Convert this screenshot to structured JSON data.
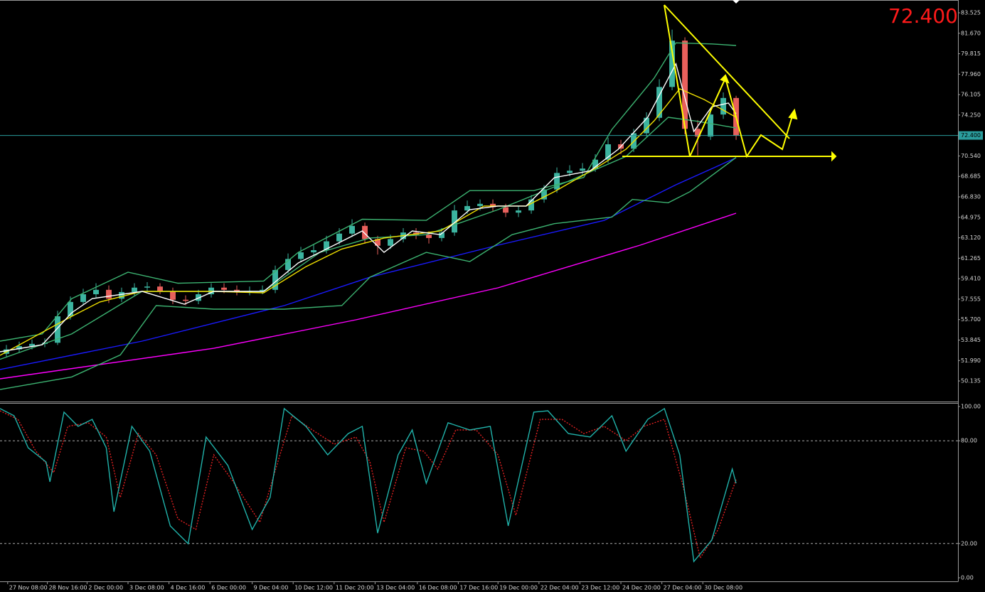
{
  "chart_data": [
    {
      "type": "candlestick",
      "up_color": "#3cb4a0",
      "down_color": "#e8605c",
      "xlim": [
        -0.5,
        74.33
      ],
      "ylim": [
        48.27,
        84.685
      ],
      "yticks": [
        83.525,
        {
          "value": 81.67,
          "label": "81.670"
        },
        79.815,
        {
          "value": 77.96,
          "label": "77.960"
        },
        76.105,
        {
          "value": 74.25,
          "label": "74.250"
        },
        {
          "value": 70.54,
          "label": "70.540"
        },
        68.685,
        {
          "value": 66.83,
          "label": "66.830"
        },
        64.975,
        {
          "value": 63.12,
          "label": "63.120"
        },
        61.265,
        {
          "value": 59.41,
          "label": "59.410"
        },
        57.555,
        {
          "value": 55.7,
          "label": "55.700"
        },
        53.845,
        {
          "value": 51.99,
          "label": "51.990"
        },
        50.135
      ],
      "last_price": {
        "value": 72.4,
        "label": "72.400"
      },
      "open": [
        52.6,
        53.0,
        53.3,
        53.5,
        53.6,
        56.0,
        57.3,
        58.0,
        58.4,
        57.6,
        58.2,
        58.6,
        58.7,
        58.3,
        57.5,
        57.4,
        58.0,
        58.6,
        58.4,
        58.2,
        58.3,
        58.4,
        60.2,
        61.2,
        61.8,
        62.0,
        62.8,
        63.5,
        64.2,
        63.0,
        62.4,
        63.0,
        63.6,
        63.4,
        63.1,
        63.6,
        65.6,
        66.0,
        66.2,
        65.9,
        65.4,
        65.6,
        66.6,
        67.5,
        69.0,
        69.2,
        69.4,
        70.2,
        71.6,
        71.2,
        72.6,
        74.0,
        76.8,
        81.0,
        73.0,
        72.3,
        74.3,
        75.8
      ],
      "high": [
        53.4,
        53.7,
        53.9,
        54.0,
        56.5,
        57.8,
        58.5,
        59.0,
        58.8,
        58.6,
        59.0,
        59.1,
        59.0,
        58.6,
        57.9,
        58.4,
        59.0,
        59.0,
        58.8,
        58.7,
        58.8,
        60.6,
        61.7,
        62.3,
        62.5,
        63.3,
        64.0,
        64.8,
        64.5,
        63.3,
        63.4,
        64.0,
        64.0,
        63.7,
        64.0,
        66.1,
        66.5,
        66.6,
        66.6,
        66.2,
        66.0,
        67.0,
        67.9,
        69.5,
        69.7,
        69.9,
        70.7,
        72.2,
        72.0,
        73.0,
        74.5,
        77.5,
        82.0,
        81.3,
        73.8,
        74.8,
        76.3,
        76.0
      ],
      "low": [
        52.3,
        52.7,
        53.0,
        53.2,
        53.4,
        55.7,
        57.0,
        57.7,
        57.2,
        57.3,
        57.9,
        58.2,
        58.0,
        57.1,
        57.0,
        57.1,
        57.7,
        58.1,
        57.9,
        57.9,
        58.0,
        58.1,
        59.9,
        60.9,
        61.5,
        61.7,
        62.5,
        63.2,
        62.6,
        61.6,
        62.1,
        62.7,
        63.0,
        62.6,
        62.8,
        63.3,
        65.3,
        65.6,
        65.5,
        65.0,
        65.0,
        65.3,
        66.3,
        67.2,
        68.7,
        68.8,
        69.1,
        69.9,
        70.7,
        70.9,
        72.3,
        73.7,
        76.5,
        72.5,
        70.6,
        72.0,
        73.9,
        72.0
      ],
      "close": [
        53.0,
        53.3,
        53.5,
        53.6,
        56.0,
        57.3,
        58.0,
        58.4,
        57.6,
        58.2,
        58.6,
        58.7,
        58.3,
        57.5,
        57.4,
        58.0,
        58.6,
        58.4,
        58.2,
        58.3,
        58.4,
        60.2,
        61.2,
        61.8,
        62.0,
        62.8,
        63.5,
        64.2,
        63.0,
        62.4,
        63.0,
        63.6,
        63.4,
        63.1,
        63.6,
        65.6,
        66.0,
        66.2,
        65.9,
        65.4,
        65.6,
        66.6,
        67.5,
        69.0,
        69.2,
        69.4,
        70.2,
        71.6,
        71.2,
        72.6,
        74.0,
        76.8,
        81.0,
        73.0,
        72.3,
        74.3,
        75.8,
        72.4
      ],
      "series": [
        {
          "color": "#ff00ff",
          "x": [
            -0.5,
            16.2,
            27.3,
            38.4,
            49.5,
            57.0
          ],
          "values": [
            50.33,
            53.1,
            55.68,
            58.58,
            62.45,
            65.35
          ]
        },
        {
          "color": "#1a1aff",
          "x": [
            -0.5,
            10.6,
            21.7,
            28.4,
            38.4,
            46.7,
            52.3,
            57.0
          ],
          "values": [
            51.17,
            53.75,
            56.97,
            59.55,
            62.45,
            64.7,
            67.93,
            70.38
          ]
        },
        {
          "color": "#3cb371",
          "x": [
            -0.5,
            2.8,
            5.1,
            9.5,
            13.4,
            20.1,
            22.8,
            27.8,
            32.8,
            36.2,
            41.2,
            45.1,
            47.3,
            50.6,
            52.3,
            55.1,
            57.0
          ],
          "values": [
            53.75,
            54.4,
            57.6,
            60.0,
            59.0,
            59.2,
            61.8,
            64.8,
            64.7,
            67.4,
            67.4,
            68.6,
            72.95,
            77.6,
            80.8,
            80.7,
            80.56
          ]
        },
        {
          "color": "#3cb371",
          "x": [
            -0.5,
            5.1,
            8.9,
            11.7,
            16.2,
            21.7,
            26.2,
            28.4,
            32.8,
            36.2,
            39.5,
            42.8,
            47.3,
            48.9,
            51.7,
            53.4,
            57.0
          ],
          "values": [
            49.36,
            50.5,
            52.5,
            56.97,
            56.65,
            56.65,
            56.97,
            59.55,
            61.8,
            60.97,
            63.4,
            64.4,
            65.0,
            66.6,
            66.3,
            67.3,
            70.4
          ]
        },
        {
          "color": "#3cb371",
          "x": [
            -0.5,
            5.1,
            10.6,
            20.1,
            24.5,
            28.4,
            32.8,
            38.4,
            43.9,
            48.4,
            51.7,
            53.9,
            57.0
          ],
          "values": [
            52.1,
            54.4,
            58.26,
            58.26,
            61.8,
            63.1,
            63.4,
            65.67,
            68.25,
            70.5,
            74.05,
            73.7,
            73.08
          ]
        },
        {
          "color": "#f0e000",
          "x": [
            -0.5,
            5.1,
            7.3,
            10.6,
            16.2,
            20.1,
            23.4,
            26.2,
            29.5,
            33.9,
            37.3,
            40.6,
            42.8,
            46.2,
            48.4,
            50.6,
            52.6,
            54.5,
            57.0
          ],
          "values": [
            52.46,
            56.0,
            57.3,
            58.26,
            58.26,
            58.13,
            60.5,
            62.1,
            63.1,
            63.74,
            66.0,
            66.0,
            67.3,
            69.55,
            71.15,
            73.73,
            76.63,
            75.66,
            74.05
          ]
        },
        {
          "color": "#ffffff",
          "x": [
            -0.5,
            2.8,
            5.1,
            6.7,
            10.6,
            13.9,
            16.2,
            20.1,
            22.8,
            25.6,
            27.8,
            29.5,
            31.7,
            33.9,
            36.2,
            38.4,
            40.6,
            42.8,
            45.6,
            47.8,
            50.1,
            52.3,
            53.7,
            55.1,
            56.4,
            57.0
          ],
          "values": [
            52.78,
            53.42,
            56.32,
            57.6,
            58.26,
            57.1,
            58.26,
            58.26,
            60.84,
            62.45,
            63.74,
            61.8,
            63.74,
            63.4,
            65.67,
            66.0,
            66.0,
            68.57,
            69.2,
            71.15,
            74.05,
            78.9,
            72.76,
            75.0,
            75.34,
            74.37
          ]
        }
      ]
    },
    {
      "type": "line",
      "xlim": [
        -0.5,
        74.33
      ],
      "ylim": [
        -2.07,
        102.07
      ],
      "yticks": [
        {
          "value": 100,
          "label": "100.00"
        },
        {
          "value": 80,
          "label": "80.00"
        },
        {
          "value": 20,
          "label": "20.00"
        },
        {
          "value": 0,
          "label": "0.00"
        }
      ],
      "xticks": [
        {
          "value": 0.1,
          "label": "27 Nov 08:00"
        },
        {
          "value": 3.2,
          "label": "28 Nov 16:00"
        },
        {
          "value": 6.3,
          "label": "2 Dec 00:00"
        },
        {
          "value": 9.5,
          "label": "3 Dec 08:00"
        },
        {
          "value": 12.7,
          "label": "4 Dec 16:00"
        },
        {
          "value": 15.9,
          "label": "6 Dec 00:00"
        },
        {
          "value": 19.2,
          "label": "9 Dec 04:00"
        },
        {
          "value": 22.4,
          "label": "10 Dec 12:00"
        },
        {
          "value": 25.6,
          "label": "11 Dec 20:00"
        },
        {
          "value": 28.8,
          "label": "13 Dec 04:00"
        },
        {
          "value": 32.1,
          "label": "16 Dec 08:00"
        },
        {
          "value": 35.3,
          "label": "17 Dec 16:00"
        },
        {
          "value": 38.4,
          "label": "19 Dec 00:00"
        },
        {
          "value": 41.6,
          "label": "22 Dec 04:00"
        },
        {
          "value": 44.8,
          "label": "23 Dec 12:00"
        },
        {
          "value": 48.0,
          "label": "24 Dec 20:00"
        },
        {
          "value": 51.2,
          "label": "27 Dec 04:00"
        },
        {
          "value": 54.4,
          "label": "30 Dec 08:00"
        }
      ],
      "series": [
        {
          "color": "#e02020",
          "dash": true,
          "x": [
            -0.5,
            0.9,
            2.3,
            3.7,
            4.8,
            6.4,
            7.8,
            8.9,
            10.3,
            11.7,
            13.4,
            14.8,
            16.2,
            17.8,
            19.8,
            21.2,
            22.3,
            23.9,
            25.6,
            27.3,
            28.4,
            29.5,
            31.2,
            32.6,
            33.7,
            35.1,
            36.7,
            38.4,
            39.8,
            41.7,
            43.4,
            45.1,
            46.7,
            48.4,
            49.8,
            51.4,
            52.8,
            54.2,
            55.6,
            57.0
          ],
          "values": [
            97.5,
            92.5,
            73.9,
            61.4,
            88.4,
            90.5,
            82.2,
            46.9,
            84.2,
            71.8,
            34.4,
            28.2,
            71.8,
            55.2,
            32.4,
            67.6,
            94.6,
            86.3,
            78.0,
            82.2,
            67.6,
            32.4,
            75.9,
            73.9,
            63.5,
            86.3,
            86.3,
            71.8,
            36.5,
            92.5,
            92.5,
            84.2,
            88.4,
            80.1,
            88.4,
            92.5,
            55.2,
            11.6,
            28.2,
            57.3
          ]
        },
        {
          "color": "#20b2aa",
          "dash": false,
          "x": [
            -0.5,
            0.6,
            1.7,
            3.1,
            3.4,
            4.5,
            5.6,
            6.7,
            7.8,
            8.4,
            9.8,
            11.2,
            12.8,
            14.2,
            15.6,
            17.3,
            19.2,
            20.6,
            21.7,
            23.4,
            25.1,
            26.7,
            27.8,
            29.0,
            30.6,
            31.7,
            32.8,
            34.5,
            36.2,
            37.8,
            39.2,
            41.2,
            42.3,
            43.9,
            45.6,
            47.3,
            48.4,
            50.1,
            51.4,
            52.6,
            53.7,
            55.1,
            56.7,
            57.0
          ],
          "values": [
            98.8,
            94.6,
            75.9,
            67.6,
            56,
            96.7,
            88.4,
            92.5,
            75.9,
            38.6,
            88.4,
            73.9,
            30.3,
            19.9,
            82.2,
            65.6,
            28.2,
            46.9,
            98.8,
            88.4,
            71.8,
            84.2,
            88.4,
            26.1,
            71.8,
            86.3,
            55.2,
            90.5,
            86.3,
            88.4,
            30.3,
            96.7,
            97.5,
            84.2,
            82.2,
            94.6,
            73.9,
            92.5,
            98.8,
            71.8,
            9.5,
            22,
            63.5,
            55.2
          ]
        }
      ]
    }
  ]
}
